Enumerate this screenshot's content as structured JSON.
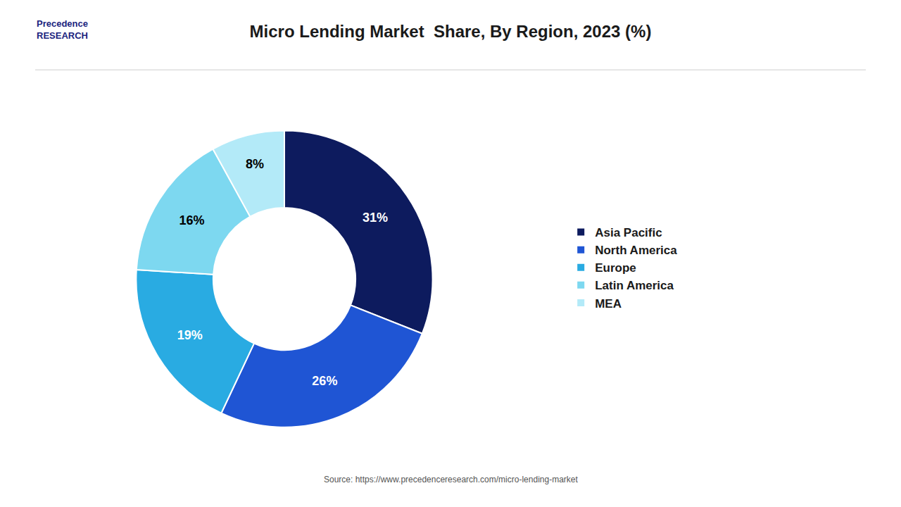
{
  "chart_data": {
    "type": "pie",
    "title": "Micro Lending Market  Share, By Region, 2023 (%)",
    "categories": [
      "Asia Pacific",
      "North America",
      "Europe",
      "Latin America",
      "MEA"
    ],
    "values": [
      31,
      26,
      19,
      16,
      8
    ],
    "value_labels": [
      "31%",
      "26%",
      "19%",
      "16%",
      "8%"
    ],
    "colors": [
      "#0d1b5e",
      "#1f55d4",
      "#29abe2",
      "#7dd8f0",
      "#b3eaf8"
    ],
    "data_labels": true,
    "legend": "right",
    "annotations": [
      "Precedence\nRESEARCH",
      "Source: https://www.precedenceresearch.com/micro-lending-market"
    ]
  }
}
